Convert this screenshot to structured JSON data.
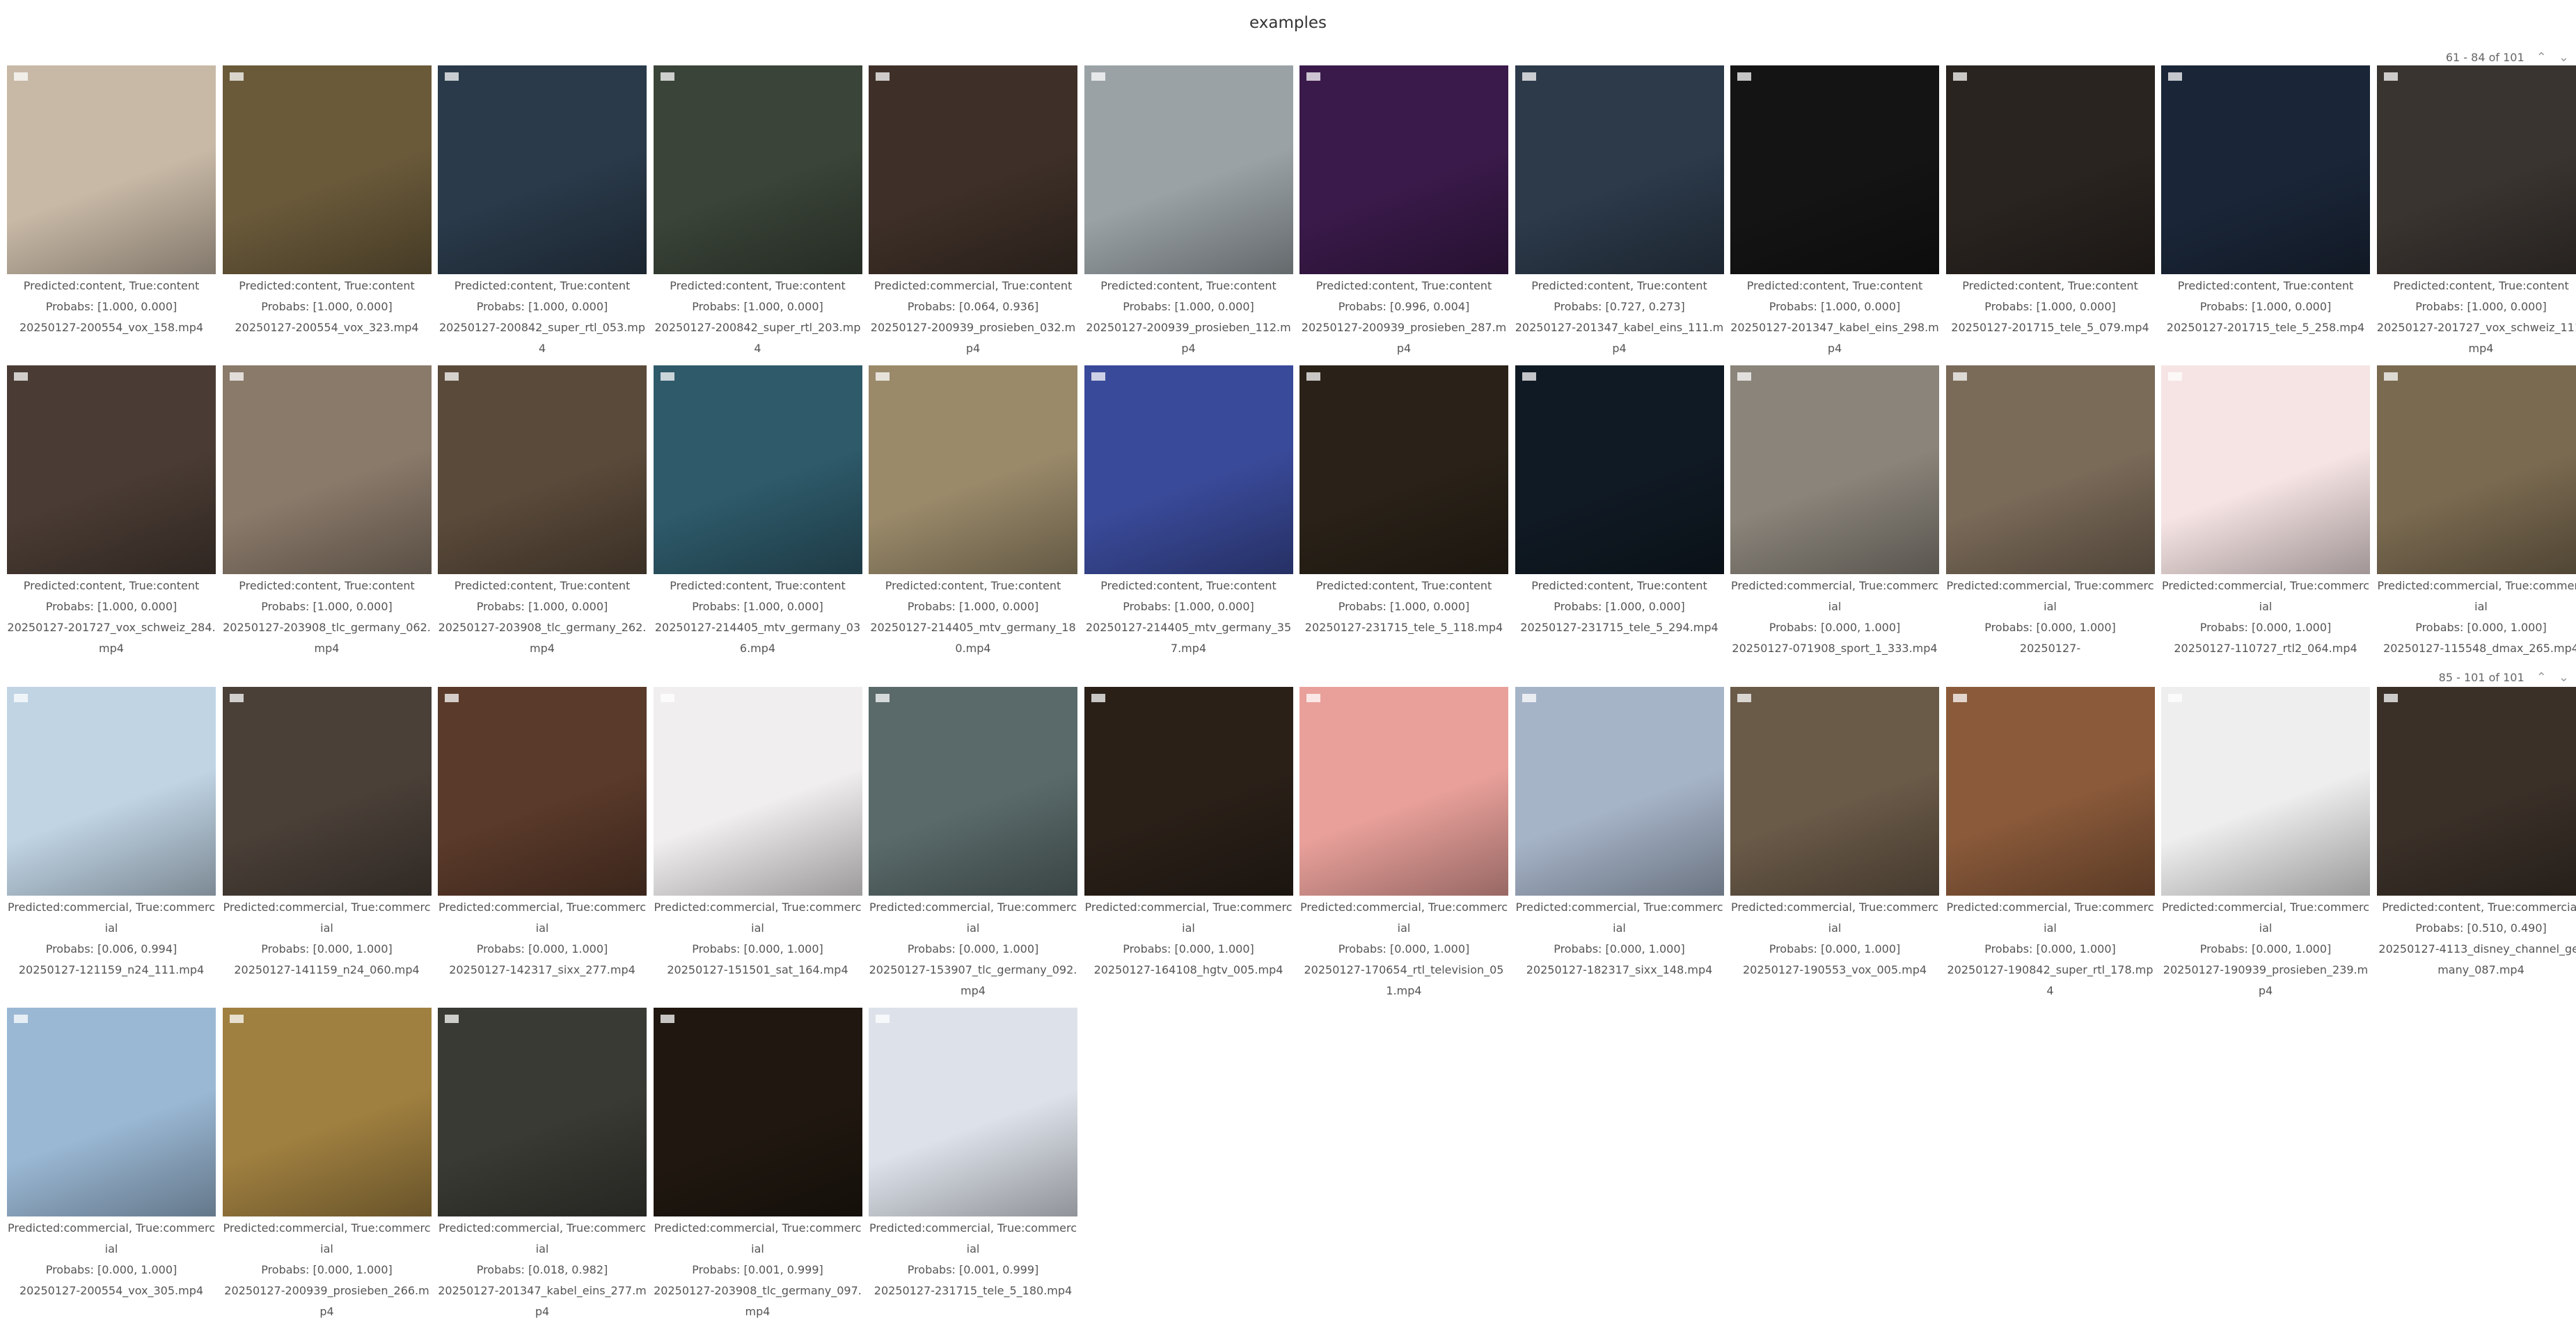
{
  "gallery": {
    "title": "examples"
  },
  "pagers": [
    {
      "text": "61 - 84 of 101",
      "up": "⌃",
      "down": "⌄"
    },
    {
      "text": "85 - 101 of 101",
      "up": "⌃",
      "down": "⌄"
    }
  ],
  "rows": [
    {
      "items": [
        {
          "pred": "Predicted:content, True:content",
          "prob": "Probabs: [1.000, 0.000]",
          "file": "20250127-200554_vox_158.mp4",
          "color": "#c8b9a6"
        },
        {
          "pred": "Predicted:content, True:content",
          "prob": "Probabs: [1.000, 0.000]",
          "file": "20250127-200554_vox_323.mp4",
          "color": "#6a5a3a"
        },
        {
          "pred": "Predicted:content, True:content",
          "prob": "Probabs: [1.000, 0.000]",
          "file": "20250127-200842_super_rtl_053.mp4",
          "color": "#2a3a4a"
        },
        {
          "pred": "Predicted:content, True:content",
          "prob": "Probabs: [1.000, 0.000]",
          "file": "20250127-200842_super_rtl_203.mp4",
          "color": "#3a4438"
        },
        {
          "pred": "Predicted:commercial, True:content",
          "prob": "Probabs: [0.064, 0.936]",
          "file": "20250127-200939_prosieben_032.mp4",
          "color": "#3e3028"
        },
        {
          "pred": "Predicted:content, True:content",
          "prob": "Probabs: [1.000, 0.000]",
          "file": "20250127-200939_prosieben_112.mp4",
          "color": "#9aa2a6"
        },
        {
          "pred": "Predicted:content, True:content",
          "prob": "Probabs: [0.996, 0.004]",
          "file": "20250127-200939_prosieben_287.mp4",
          "color": "#3a1a4a"
        },
        {
          "pred": "Predicted:content, True:content",
          "prob": "Probabs: [0.727, 0.273]",
          "file": "20250127-201347_kabel_eins_111.mp4",
          "color": "#2c3a4a"
        },
        {
          "pred": "Predicted:content, True:content",
          "prob": "Probabs: [1.000, 0.000]",
          "file": "20250127-201347_kabel_eins_298.mp4",
          "color": "#141414"
        },
        {
          "pred": "Predicted:content, True:content",
          "prob": "Probabs: [1.000, 0.000]",
          "file": "20250127-201715_tele_5_079.mp4",
          "color": "#2a2420"
        },
        {
          "pred": "Predicted:content, True:content",
          "prob": "Probabs: [1.000, 0.000]",
          "file": "20250127-201715_tele_5_258.mp4",
          "color": "#1a2638"
        },
        {
          "pred": "Predicted:content, True:content",
          "prob": "Probabs: [1.000, 0.000]",
          "file": "20250127-201727_vox_schweiz_111.mp4",
          "color": "#3a3430"
        }
      ]
    },
    {
      "items": [
        {
          "pred": "Predicted:content, True:content",
          "prob": "Probabs: [1.000, 0.000]",
          "file": "20250127-201727_vox_schweiz_284.mp4",
          "color": "#4a3c34"
        },
        {
          "pred": "Predicted:content, True:content",
          "prob": "Probabs: [1.000, 0.000]",
          "file": "20250127-203908_tlc_germany_062.mp4",
          "color": "#8a7a6a"
        },
        {
          "pred": "Predicted:content, True:content",
          "prob": "Probabs: [1.000, 0.000]",
          "file": "20250127-203908_tlc_germany_262.mp4",
          "color": "#5a4a3a"
        },
        {
          "pred": "Predicted:content, True:content",
          "prob": "Probabs: [1.000, 0.000]",
          "file": "20250127-214405_mtv_germany_036.mp4",
          "color": "#2e5a6a"
        },
        {
          "pred": "Predicted:content, True:content",
          "prob": "Probabs: [1.000, 0.000]",
          "file": "20250127-214405_mtv_germany_180.mp4",
          "color": "#9a8a6a"
        },
        {
          "pred": "Predicted:content, True:content",
          "prob": "Probabs: [1.000, 0.000]",
          "file": "20250127-214405_mtv_germany_357.mp4",
          "color": "#3a4a9a"
        },
        {
          "pred": "Predicted:content, True:content",
          "prob": "Probabs: [1.000, 0.000]",
          "file": "20250127-231715_tele_5_118.mp4",
          "color": "#2a2218"
        },
        {
          "pred": "Predicted:content, True:content",
          "prob": "Probabs: [1.000, 0.000]",
          "file": "20250127-231715_tele_5_294.mp4",
          "color": "#101a24"
        },
        {
          "pred": "Predicted:commercial, True:commercial",
          "prob": "Probabs: [0.000, 1.000]",
          "file": "20250127-071908_sport_1_333.mp4",
          "color": "#8a847a"
        },
        {
          "pred": "Predicted:commercial, True:commercial",
          "prob": "Probabs: [0.000, 1.000]",
          "file": "20250127-",
          "color": "#7a6a58"
        },
        {
          "pred": "Predicted:commercial, True:commercial",
          "prob": "Probabs: [0.000, 1.000]",
          "file": "20250127-110727_rtl2_064.mp4",
          "color": "#f6e4e4"
        },
        {
          "pred": "Predicted:commercial, True:commercial",
          "prob": "Probabs: [0.000, 1.000]",
          "file": "20250127-115548_dmax_265.mp4",
          "color": "#7a6a50"
        }
      ]
    },
    {
      "items": [
        {
          "pred": "Predicted:commercial, True:commercial",
          "prob": "Probabs: [0.006, 0.994]",
          "file": "20250127-121159_n24_111.mp4",
          "color": "#c0d4e4"
        },
        {
          "pred": "Predicted:commercial, True:commercial",
          "prob": "Probabs: [0.000, 1.000]",
          "file": "20250127-141159_n24_060.mp4",
          "color": "#4a4038"
        },
        {
          "pred": "Predicted:commercial, True:commercial",
          "prob": "Probabs: [0.000, 1.000]",
          "file": "20250127-142317_sixx_277.mp4",
          "color": "#5a3a2a"
        },
        {
          "pred": "Predicted:commercial, True:commercial",
          "prob": "Probabs: [0.000, 1.000]",
          "file": "20250127-151501_sat_164.mp4",
          "color": "#f0eeee"
        },
        {
          "pred": "Predicted:commercial, True:commercial",
          "prob": "Probabs: [0.000, 1.000]",
          "file": "20250127-153907_tlc_germany_092.mp4",
          "color": "#5a6a6a"
        },
        {
          "pred": "Predicted:commercial, True:commercial",
          "prob": "Probabs: [0.000, 1.000]",
          "file": "20250127-164108_hgtv_005.mp4",
          "color": "#2a2018"
        },
        {
          "pred": "Predicted:commercial, True:commercial",
          "prob": "Probabs: [0.000, 1.000]",
          "file": "20250127-170654_rtl_television_051.mp4",
          "color": "#e9a09a"
        },
        {
          "pred": "Predicted:commercial, True:commercial",
          "prob": "Probabs: [0.000, 1.000]",
          "file": "20250127-182317_sixx_148.mp4",
          "color": "#a6b4c8"
        },
        {
          "pred": "Predicted:commercial, True:commercial",
          "prob": "Probabs: [0.000, 1.000]",
          "file": "20250127-190553_vox_005.mp4",
          "color": "#6a5a48"
        },
        {
          "pred": "Predicted:commercial, True:commercial",
          "prob": "Probabs: [0.000, 1.000]",
          "file": "20250127-190842_super_rtl_178.mp4",
          "color": "#8a5a3a"
        },
        {
          "pred": "Predicted:commercial, True:commercial",
          "prob": "Probabs: [0.000, 1.000]",
          "file": "20250127-190939_prosieben_239.mp4",
          "color": "#eeeeee"
        },
        {
          "pred": "Predicted:content, True:commercial",
          "prob": "Probabs: [0.510, 0.490]",
          "file": "20250127-4113_disney_channel_germany_087.mp4",
          "color": "#3a3028"
        }
      ]
    },
    {
      "items": [
        {
          "pred": "Predicted:commercial, True:commercial",
          "prob": "Probabs: [0.000, 1.000]",
          "file": "20250127-200554_vox_305.mp4",
          "color": "#9ab8d4"
        },
        {
          "pred": "Predicted:commercial, True:commercial",
          "prob": "Probabs: [0.000, 1.000]",
          "file": "20250127-200939_prosieben_266.mp4",
          "color": "#a08040"
        },
        {
          "pred": "Predicted:commercial, True:commercial",
          "prob": "Probabs: [0.018, 0.982]",
          "file": "20250127-201347_kabel_eins_277.mp4",
          "color": "#3a3a34"
        },
        {
          "pred": "Predicted:commercial, True:commercial",
          "prob": "Probabs: [0.001, 0.999]",
          "file": "20250127-203908_tlc_germany_097.mp4",
          "color": "#201810"
        },
        {
          "pred": "Predicted:commercial, True:commercial",
          "prob": "Probabs: [0.001, 0.999]",
          "file": "20250127-231715_tele_5_180.mp4",
          "color": "#dde2ea"
        }
      ]
    }
  ]
}
